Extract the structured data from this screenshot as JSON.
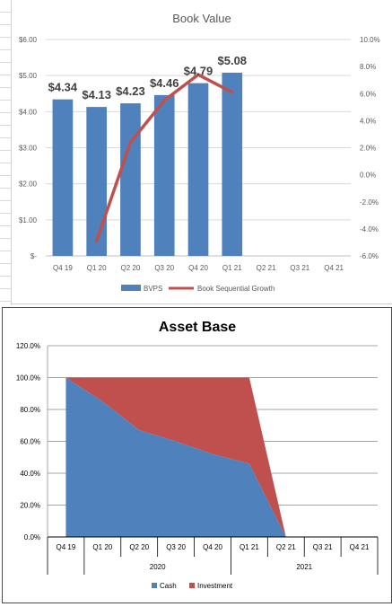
{
  "chart_data": [
    {
      "type": "bar",
      "title": "Book Value",
      "categories": [
        "Q4 19",
        "Q1 20",
        "Q2 20",
        "Q3 20",
        "Q4 20",
        "Q1 21",
        "Q2 21",
        "Q3 21",
        "Q4 21"
      ],
      "series": [
        {
          "name": "BVPS",
          "type": "bar",
          "axis": "left",
          "values": [
            4.34,
            4.13,
            4.23,
            4.46,
            4.79,
            5.08,
            null,
            null,
            null
          ]
        },
        {
          "name": "Book Sequential Growth",
          "type": "line",
          "axis": "right",
          "values": [
            null,
            -4.9,
            2.4,
            5.5,
            7.4,
            6.1,
            null,
            null,
            null
          ]
        }
      ],
      "data_labels": [
        "$4.34",
        "$4.13",
        "$4.23",
        "$4.46",
        "$4.79",
        "$5.08"
      ],
      "y_left": {
        "ylim": [
          0,
          6
        ],
        "ticks": [
          "$-",
          "$1.00",
          "$2.00",
          "$3.00",
          "$4.00",
          "$5.00",
          "$6.00"
        ]
      },
      "y_right": {
        "ylim": [
          -6,
          10
        ],
        "ticks": [
          "-6.0%",
          "-4.0%",
          "-2.0%",
          "0.0%",
          "2.0%",
          "4.0%",
          "6.0%",
          "8.0%",
          "10.0%"
        ]
      },
      "grid": true,
      "legend": "bottom",
      "colors": {
        "bar": "#4f81bd",
        "line": "#c0504d"
      }
    },
    {
      "type": "area",
      "stacked": true,
      "title": "Asset Base",
      "categories": [
        "Q4 19",
        "Q1 20",
        "Q2 20",
        "Q3 20",
        "Q4 20",
        "Q1 21",
        "Q2 21",
        "Q3 21",
        "Q4 21"
      ],
      "groups": [
        {
          "label": "2020",
          "categories": [
            "Q1 20",
            "Q2 20",
            "Q3 20",
            "Q4 20"
          ]
        },
        {
          "label": "2021",
          "categories": [
            "Q1 21",
            "Q2 21",
            "Q3 21",
            "Q4 21"
          ]
        }
      ],
      "series": [
        {
          "name": "Cash",
          "values": [
            100,
            85,
            67,
            60,
            52,
            46,
            0,
            null,
            null
          ]
        },
        {
          "name": "Investment",
          "values": [
            0,
            15,
            33,
            40,
            48,
            54,
            0,
            null,
            null
          ]
        }
      ],
      "y_ticks": [
        "0.0%",
        "20.0%",
        "40.0%",
        "60.0%",
        "80.0%",
        "100.0%",
        "120.0%"
      ],
      "ylim": [
        0,
        120
      ],
      "grid": true,
      "legend": "bottom",
      "colors": {
        "Cash": "#4f81bd",
        "Investment": "#c0504d"
      }
    }
  ]
}
